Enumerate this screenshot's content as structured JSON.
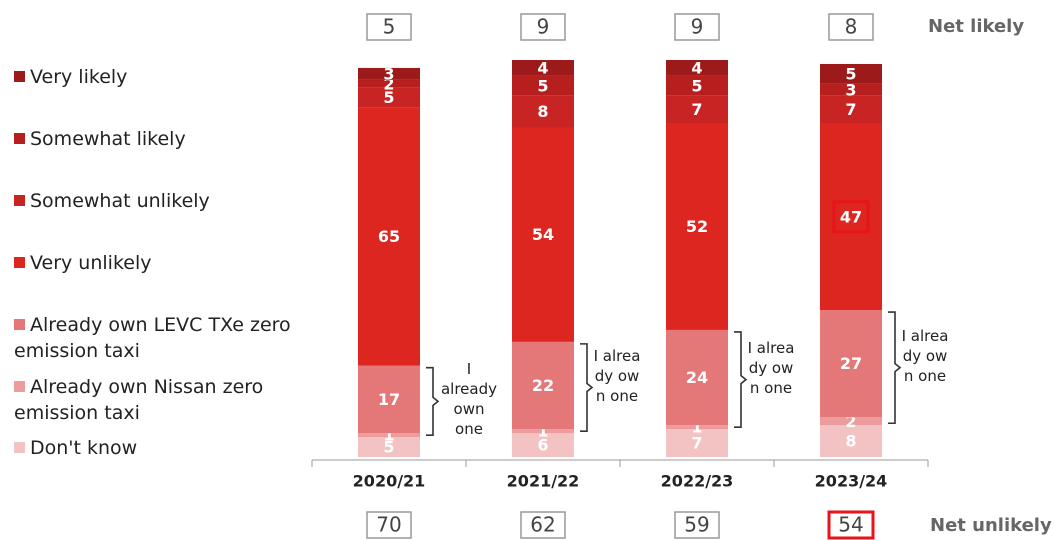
{
  "chart_data": {
    "type": "stacked_bar",
    "categories": [
      "2020/21",
      "2021/22",
      "2022/23",
      "2023/24"
    ],
    "series": [
      {
        "name": "Very likely",
        "color": "#9c1a1a",
        "values": [
          3,
          4,
          4,
          5
        ]
      },
      {
        "name": "Somewhat likely",
        "color": "#b71f1f",
        "values": [
          2,
          5,
          5,
          3
        ]
      },
      {
        "name": "Somewhat unlikely",
        "color": "#c92424",
        "values": [
          5,
          8,
          7,
          7
        ]
      },
      {
        "name": "Very unlikely",
        "color": "#dd2620",
        "values": [
          65,
          54,
          52,
          47
        ]
      },
      {
        "name": "Already own LEVC TXe zero emission taxi",
        "color": "#e47878",
        "values": [
          17,
          22,
          24,
          27
        ]
      },
      {
        "name": "Already own Nissan zero emission taxi",
        "color": "#ec9c9c",
        "values": [
          1,
          1,
          1,
          2
        ]
      },
      {
        "name": "Don't know",
        "color": "#f3c2c2",
        "values": [
          5,
          6,
          7,
          8
        ]
      }
    ],
    "ylim": [
      0,
      100
    ],
    "net_likely": {
      "label": "Net likely",
      "values": [
        5,
        9,
        9,
        8
      ]
    },
    "net_unlikely": {
      "label": "Net unlikely",
      "values": [
        70,
        62,
        59,
        54
      ]
    },
    "annotations": [
      "I already own one",
      "I already own one",
      "I already own one",
      "I already own one"
    ],
    "highlight_color": "#e8131b"
  }
}
